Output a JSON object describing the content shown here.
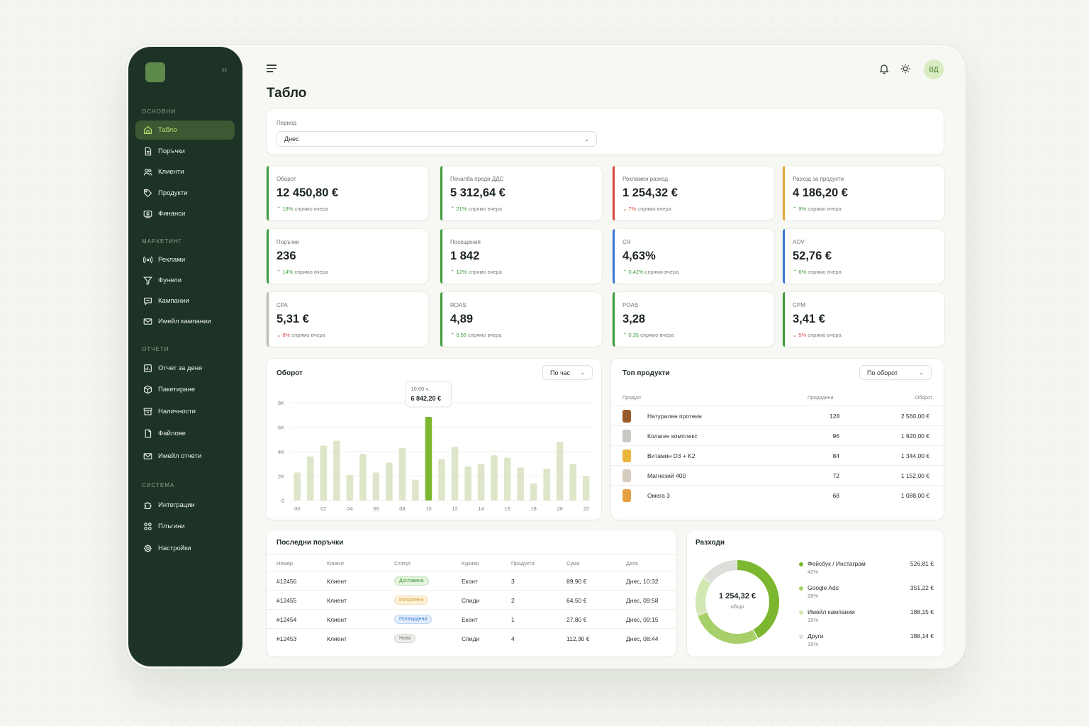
{
  "sidebar": {
    "sections": [
      {
        "title": "ОСНОВНИ",
        "items": [
          {
            "label": "Табло",
            "icon": "home-icon",
            "active": true
          },
          {
            "label": "Поръчки",
            "icon": "document-icon"
          },
          {
            "label": "Клиенти",
            "icon": "users-icon"
          },
          {
            "label": "Продукти",
            "icon": "tag-icon"
          },
          {
            "label": "Финанси",
            "icon": "money-icon"
          }
        ]
      },
      {
        "title": "МАРКЕТИНГ",
        "items": [
          {
            "label": "Реклами",
            "icon": "broadcast-icon"
          },
          {
            "label": "Фунели",
            "icon": "funnel-icon"
          },
          {
            "label": "Кампании",
            "icon": "chat-icon"
          },
          {
            "label": "Имейл кампании",
            "icon": "mail-heart-icon"
          }
        ]
      },
      {
        "title": "ОТЧЕТИ",
        "items": [
          {
            "label": "Отчет за деня",
            "icon": "report-icon"
          },
          {
            "label": "Пакетиране",
            "icon": "box-icon"
          },
          {
            "label": "Наличности",
            "icon": "archive-icon"
          },
          {
            "label": "Файлове",
            "icon": "file-icon"
          },
          {
            "label": "Имейл отчети",
            "icon": "mail-icon"
          }
        ]
      },
      {
        "title": "СИСТЕМА",
        "items": [
          {
            "label": "Интеграции",
            "icon": "puzzle-icon"
          },
          {
            "label": "Плъгини",
            "icon": "grid-icon"
          },
          {
            "label": "Настройки",
            "icon": "gear-icon"
          }
        ]
      }
    ]
  },
  "header": {
    "title": "Табло",
    "avatar": "ВД"
  },
  "period": {
    "label": "Период",
    "value": "Днес"
  },
  "kpis": [
    {
      "label": "Оборот",
      "value": "12 450,80 €",
      "delta": "18%",
      "dir": "up",
      "suffix": "спрямо вчера",
      "accent": "#3e9b3b"
    },
    {
      "label": "Печалба преди ДДС",
      "value": "5 312,64 €",
      "delta": "21%",
      "dir": "up",
      "suffix": "спрямо вчера",
      "accent": "#3e9b3b"
    },
    {
      "label": "Рекламен разход",
      "value": "1 254,32 €",
      "delta": "7%",
      "dir": "down",
      "suffix": "спрямо вчера",
      "accent": "#d54a3e"
    },
    {
      "label": "Разход за продукти",
      "value": "4 186,20 €",
      "delta": "9%",
      "dir": "up",
      "suffix": "спрямо вчера",
      "accent": "#e5a53c"
    },
    {
      "label": "Поръчки",
      "value": "236",
      "delta": "14%",
      "dir": "up",
      "suffix": "спрямо вчера",
      "accent": "#3e9b3b"
    },
    {
      "label": "Посещения",
      "value": "1 842",
      "delta": "12%",
      "dir": "up",
      "suffix": "спрямо вчера",
      "accent": "#3e9b3b"
    },
    {
      "label": "CR",
      "value": "4,63%",
      "delta": "0,42%",
      "dir": "up",
      "suffix": "спрямо вчера",
      "accent": "#3b78d8"
    },
    {
      "label": "AOV",
      "value": "52,76 €",
      "delta": "6%",
      "dir": "up",
      "suffix": "спрямо вчера",
      "accent": "#3b78d8"
    },
    {
      "label": "CPA",
      "value": "5,31 €",
      "delta": "8%",
      "dir": "down",
      "suffix": "спрямо вчера",
      "accent": "#b9bfb5"
    },
    {
      "label": "ROAS",
      "value": "4,89",
      "delta": "0,56",
      "dir": "up",
      "suffix": "спрямо вчера",
      "accent": "#3e9b3b"
    },
    {
      "label": "POAS",
      "value": "3,28",
      "delta": "0,35",
      "dir": "up",
      "suffix": "спрямо вчера",
      "accent": "#3e9b3b"
    },
    {
      "label": "CPM",
      "value": "3,41 €",
      "delta": "5%",
      "dir": "down",
      "suffix": "спрямо вчера",
      "accent": "#3e9b3b"
    }
  ],
  "revenue": {
    "title": "Оборот",
    "select": "По час",
    "tooltip": {
      "time": "10:00 ч.",
      "value": "6 842,20 €"
    }
  },
  "chart_data": {
    "type": "bar",
    "x": [
      "00",
      "01",
      "02",
      "03",
      "04",
      "05",
      "06",
      "07",
      "08",
      "09",
      "10",
      "11",
      "12",
      "13",
      "14",
      "15",
      "16",
      "17",
      "18",
      "19",
      "20",
      "21",
      "22"
    ],
    "values": [
      2300,
      3600,
      4500,
      4900,
      2100,
      3800,
      2300,
      3100,
      4300,
      1700,
      6842,
      3400,
      4400,
      2800,
      3000,
      3700,
      3500,
      2700,
      1400,
      2600,
      4800,
      3000,
      2000
    ],
    "highlight_index": 10,
    "x_ticks": [
      "00",
      "02",
      "04",
      "06",
      "08",
      "10",
      "12",
      "14",
      "16",
      "18",
      "20",
      "22"
    ],
    "y_ticks": [
      "0",
      "2K",
      "4K",
      "6K",
      "8K"
    ],
    "ylim": [
      0,
      8000
    ],
    "colors": {
      "bar": "#dde6c8",
      "highlight": "#7bb82f"
    }
  },
  "top_products": {
    "title": "Топ продукти",
    "select": "По оборот",
    "columns": [
      "Продукт",
      "Продадени",
      "Оборот"
    ],
    "rows": [
      {
        "name": "Натурален протеин",
        "sold": "128",
        "revenue": "2 560,00 €",
        "color": "#9a5b2a"
      },
      {
        "name": "Колаген комплекс",
        "sold": "96",
        "revenue": "1 920,00 €",
        "color": "#c9c9c4"
      },
      {
        "name": "Витамин D3 + K2",
        "sold": "84",
        "revenue": "1 344,00 €",
        "color": "#e9b53a"
      },
      {
        "name": "Магнезий 400",
        "sold": "72",
        "revenue": "1 152,00 €",
        "color": "#d6ccc0"
      },
      {
        "name": "Омега 3",
        "sold": "68",
        "revenue": "1 088,00 €",
        "color": "#e2a042"
      }
    ]
  },
  "orders": {
    "title": "Последни поръчки",
    "columns": [
      "Номер",
      "Клиент",
      "Статус",
      "Куриер",
      "Продукти",
      "Сума",
      "Дата"
    ],
    "rows": [
      {
        "id": "#12456",
        "client": "Клиент",
        "status": "Доставена",
        "status_color": "#3e9b3b",
        "status_bg": "#e3f3dc",
        "courier": "Еконт",
        "items": "3",
        "sum": "89,90 €",
        "date": "Днес, 10:32"
      },
      {
        "id": "#12455",
        "client": "Клиент",
        "status": "Изпратена",
        "status_color": "#d99a2b",
        "status_bg": "#fdf0d8",
        "courier": "Спиди",
        "items": "2",
        "sum": "64,50 €",
        "date": "Днес, 09:58"
      },
      {
        "id": "#12454",
        "client": "Клиент",
        "status": "Потвърдена",
        "status_color": "#3b78d8",
        "status_bg": "#e1ecfb",
        "courier": "Еконт",
        "items": "1",
        "sum": "27,80 €",
        "date": "Днес, 09:15"
      },
      {
        "id": "#12453",
        "client": "Клиент",
        "status": "Нова",
        "status_color": "#6c746c",
        "status_bg": "#eceeea",
        "courier": "Спиди",
        "items": "4",
        "sum": "112,30 €",
        "date": "Днес, 08:44"
      }
    ]
  },
  "expenses": {
    "title": "Разходи",
    "total": "1 254,32 €",
    "total_label": "общо",
    "items": [
      {
        "name": "Фейсбук / Инстаграм",
        "pct": "42%",
        "amount": "526,81 €",
        "share": 0.42,
        "color": "#7bb82f"
      },
      {
        "name": "Google Ads",
        "pct": "28%",
        "amount": "351,22 €",
        "share": 0.28,
        "color": "#a7cf6a"
      },
      {
        "name": "Имейл кампании",
        "pct": "15%",
        "amount": "188,15 €",
        "share": 0.15,
        "color": "#d3e7b3"
      },
      {
        "name": "Други",
        "pct": "15%",
        "amount": "188,14 €",
        "share": 0.15,
        "color": "#dcdfd8"
      }
    ]
  }
}
